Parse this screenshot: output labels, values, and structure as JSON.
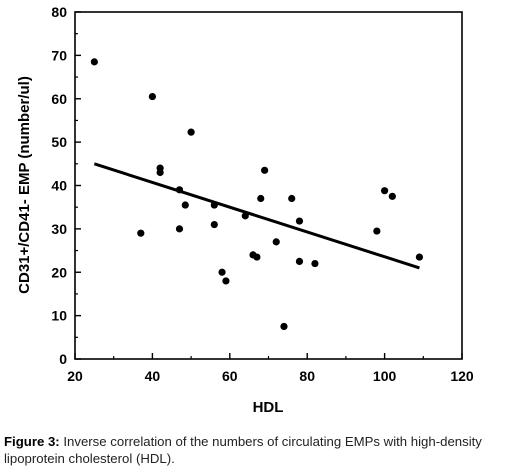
{
  "chart_data": {
    "type": "scatter",
    "xlabel": "HDL",
    "ylabel": "CD31+/CD41- EMP (number/ul)",
    "xlim": [
      20,
      120
    ],
    "ylim": [
      0,
      80
    ],
    "xticks": [
      20,
      40,
      60,
      80,
      100,
      120
    ],
    "yticks": [
      0,
      10,
      20,
      30,
      40,
      50,
      60,
      70,
      80
    ],
    "grid": false,
    "points": [
      {
        "x": 25,
        "y": 68.5
      },
      {
        "x": 37,
        "y": 29
      },
      {
        "x": 40,
        "y": 60.5
      },
      {
        "x": 42,
        "y": 44
      },
      {
        "x": 42,
        "y": 43
      },
      {
        "x": 47,
        "y": 39
      },
      {
        "x": 47,
        "y": 30
      },
      {
        "x": 48.5,
        "y": 35.5
      },
      {
        "x": 50,
        "y": 52.3
      },
      {
        "x": 56,
        "y": 35.5
      },
      {
        "x": 56,
        "y": 31
      },
      {
        "x": 58,
        "y": 20
      },
      {
        "x": 59,
        "y": 18
      },
      {
        "x": 64,
        "y": 33
      },
      {
        "x": 66,
        "y": 24
      },
      {
        "x": 67,
        "y": 23.5
      },
      {
        "x": 68,
        "y": 37
      },
      {
        "x": 69,
        "y": 43.5
      },
      {
        "x": 72,
        "y": 27
      },
      {
        "x": 74,
        "y": 7.5
      },
      {
        "x": 76,
        "y": 37
      },
      {
        "x": 78,
        "y": 31.8
      },
      {
        "x": 78,
        "y": 22.5
      },
      {
        "x": 82,
        "y": 22
      },
      {
        "x": 98,
        "y": 29.5
      },
      {
        "x": 100,
        "y": 38.8
      },
      {
        "x": 102,
        "y": 37.5
      },
      {
        "x": 109,
        "y": 23.5
      }
    ],
    "trendline": {
      "x": [
        25,
        109
      ],
      "y": [
        45,
        21
      ]
    }
  },
  "caption": {
    "label": "Figure 3:",
    "text": "Inverse correlation of the numbers of circulating EMPs with high-density lipoprotein cholesterol (HDL)."
  }
}
